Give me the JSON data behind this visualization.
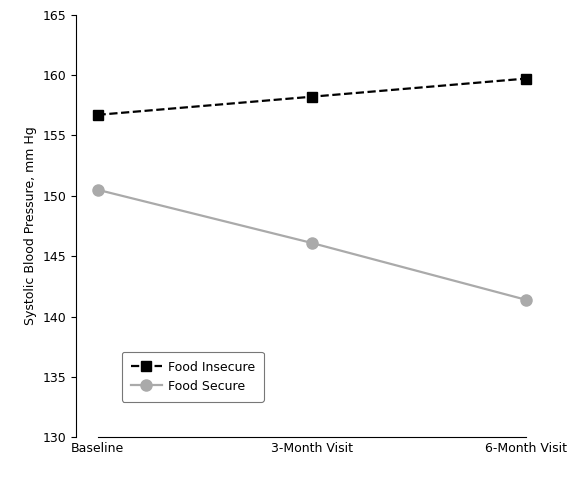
{
  "x_labels": [
    "Baseline",
    "3-Month Visit",
    "6-Month Visit"
  ],
  "food_insecure_values": [
    156.7,
    158.2,
    159.7
  ],
  "food_secure_values": [
    150.5,
    146.1,
    141.4
  ],
  "food_insecure_color": "#000000",
  "food_secure_color": "#aaaaaa",
  "ylabel": "Systolic Blood Pressure, mm Hg",
  "ylim": [
    130,
    165
  ],
  "yticks": [
    130,
    135,
    140,
    145,
    150,
    155,
    160,
    165
  ],
  "legend_food_insecure": "Food Insecure",
  "legend_food_secure": "Food Secure",
  "marker_insecure": "s",
  "marker_secure": "o",
  "marker_size_insecure": 7,
  "marker_size_secure": 8,
  "line_width": 1.6,
  "background_color": "#ffffff",
  "tick_fontsize": 9,
  "ylabel_fontsize": 9,
  "legend_fontsize": 9
}
